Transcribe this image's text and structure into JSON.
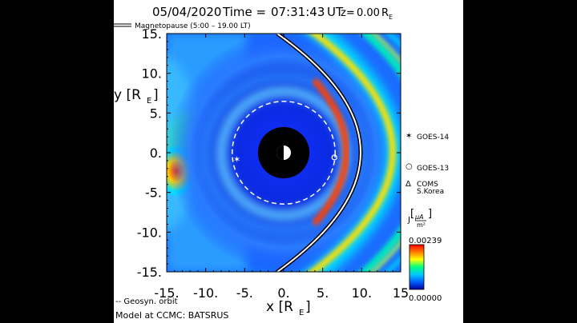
{
  "header": {
    "date": "05/04/2020",
    "time_label": "Time =",
    "time_value": "07:31:43",
    "time_zone": "UT",
    "z_label": "z=",
    "z_value": "0.00",
    "z_unit_main": "R",
    "z_unit_sub": "E"
  },
  "legend": {
    "magnetopause": "Magnetopause (5:00 – 19.00 LT)",
    "geosyn": "-- Geosyn. orbit"
  },
  "footer": {
    "model": "Model at CCMC: BATSRUS"
  },
  "satellites": [
    {
      "symbol": "✶",
      "name": "GOES-14",
      "name2": ""
    },
    {
      "symbol": "○",
      "name": "GOES-13",
      "name2": ""
    },
    {
      "symbol": "Δ",
      "name": "COMS",
      "name2": "S.Korea"
    }
  ],
  "colorbar": {
    "label": "J",
    "unit_top": "μA",
    "unit_bot": "m²",
    "max": "0.00239",
    "min": "0.00000",
    "colors": [
      "#0000a0",
      "#0060ff",
      "#00c8ff",
      "#00ff80",
      "#ffff00",
      "#ff8000",
      "#ff0000"
    ]
  },
  "chart_data": {
    "type": "heatmap",
    "xlabel_main": "x [R",
    "xlabel_sub": "E",
    "xlabel_end": "]",
    "ylabel_main": "y [R",
    "ylabel_sub": "E",
    "ylabel_end": "]",
    "xlim": [
      -15,
      15
    ],
    "ylim": [
      -15,
      15
    ],
    "x_ticks": [
      "-15.",
      "-10.",
      "-5.",
      "0.",
      "5.",
      "10.",
      "15"
    ],
    "y_ticks": [
      "15.",
      "10.",
      "5.",
      "0.",
      "-5.",
      "-10.",
      "-15."
    ],
    "geosync_orbit_radius": 6.6,
    "earth_disk_radius": 3.3,
    "satellite_positions": [
      {
        "name": "GOES-14",
        "x": -6.0,
        "y": -0.8
      },
      {
        "name": "GOES-13",
        "x": 6.5,
        "y": -0.6
      }
    ]
  }
}
